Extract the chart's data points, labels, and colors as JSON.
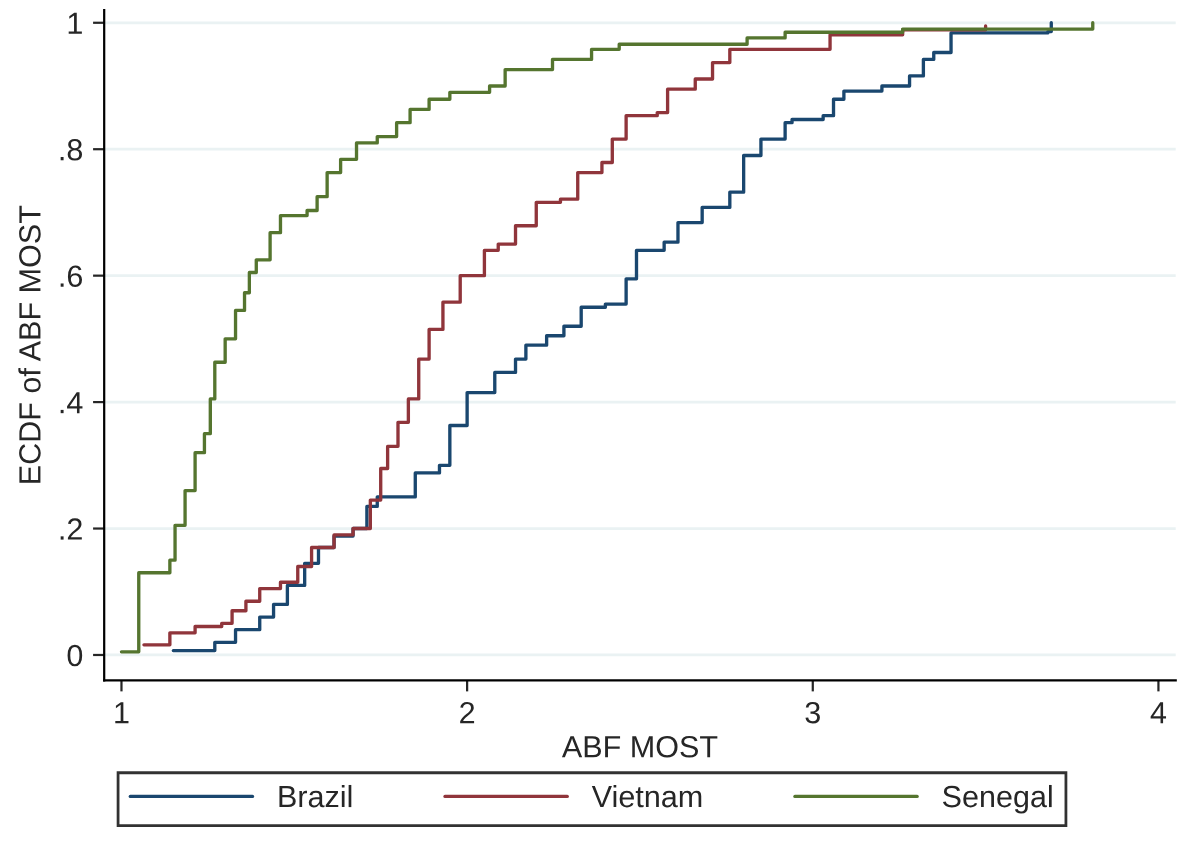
{
  "chart_data": {
    "type": "step",
    "xlabel": "ABF MOST",
    "ylabel": "ECDF of ABF MOST",
    "xlim": [
      0.95,
      4.05
    ],
    "xticks": [
      1,
      2,
      3,
      4
    ],
    "ylim": [
      -0.04,
      1.02
    ],
    "yticks": [
      {
        "value": 0,
        "label": "0"
      },
      {
        "value": 0.2,
        "label": ".2"
      },
      {
        "value": 0.4,
        "label": ".4"
      },
      {
        "value": 0.6,
        "label": ".6"
      },
      {
        "value": 0.8,
        "label": ".8"
      },
      {
        "value": 1,
        "label": "1"
      }
    ],
    "grid": "y",
    "legend": "bottom",
    "series": [
      {
        "name": "Brazil",
        "color": "#1a476f",
        "x": [
          1.15,
          1.27,
          1.33,
          1.4,
          1.44,
          1.48,
          1.53,
          1.57,
          1.615,
          1.67,
          1.71,
          1.74,
          1.8,
          1.85,
          1.92,
          1.95,
          2.0,
          2.08,
          2.14,
          2.17,
          2.23,
          2.28,
          2.33,
          2.4,
          2.46,
          2.49,
          2.57,
          2.61,
          2.68,
          2.76,
          2.8,
          2.85,
          2.92,
          2.94,
          3.03,
          3.06,
          3.09,
          3.2,
          3.28,
          3.32,
          3.35,
          3.4,
          3.68,
          3.69
        ],
        "values": [
          0.007,
          0.02,
          0.04,
          0.06,
          0.08,
          0.11,
          0.145,
          0.17,
          0.188,
          0.2,
          0.235,
          0.25,
          0.25,
          0.288,
          0.3,
          0.363,
          0.415,
          0.447,
          0.468,
          0.49,
          0.505,
          0.52,
          0.55,
          0.555,
          0.595,
          0.64,
          0.653,
          0.684,
          0.708,
          0.732,
          0.79,
          0.816,
          0.842,
          0.847,
          0.853,
          0.879,
          0.892,
          0.9,
          0.916,
          0.942,
          0.953,
          0.984,
          0.986,
          1.0
        ]
      },
      {
        "name": "Vietnam",
        "color": "#90353b",
        "x": [
          1.065,
          1.14,
          1.213,
          1.29,
          1.32,
          1.36,
          1.4,
          1.46,
          1.51,
          1.55,
          1.615,
          1.67,
          1.72,
          1.75,
          1.77,
          1.8,
          1.83,
          1.86,
          1.89,
          1.93,
          1.98,
          2.05,
          2.09,
          2.14,
          2.2,
          2.27,
          2.32,
          2.39,
          2.42,
          2.46,
          2.55,
          2.58,
          2.66,
          2.71,
          2.76,
          3.05,
          3.26,
          3.5
        ],
        "values": [
          0.016,
          0.035,
          0.045,
          0.05,
          0.07,
          0.085,
          0.105,
          0.115,
          0.14,
          0.17,
          0.19,
          0.2,
          0.245,
          0.295,
          0.33,
          0.368,
          0.405,
          0.468,
          0.515,
          0.558,
          0.6,
          0.64,
          0.65,
          0.679,
          0.716,
          0.721,
          0.763,
          0.779,
          0.816,
          0.853,
          0.858,
          0.895,
          0.911,
          0.937,
          0.958,
          0.981,
          0.989,
          0.995
        ]
      },
      {
        "name": "Senegal",
        "color": "#55752f",
        "x": [
          1.0,
          1.05,
          1.08,
          1.14,
          1.155,
          1.184,
          1.213,
          1.24,
          1.257,
          1.27,
          1.3,
          1.33,
          1.356,
          1.37,
          1.39,
          1.43,
          1.46,
          1.537,
          1.566,
          1.595,
          1.634,
          1.68,
          1.74,
          1.796,
          1.835,
          1.89,
          1.95,
          2.065,
          2.11,
          2.247,
          2.36,
          2.44,
          2.81,
          2.92,
          3.26,
          3.81
        ],
        "values": [
          0.005,
          0.13,
          0.13,
          0.15,
          0.205,
          0.26,
          0.32,
          0.35,
          0.405,
          0.463,
          0.5,
          0.545,
          0.573,
          0.605,
          0.625,
          0.668,
          0.695,
          0.703,
          0.725,
          0.763,
          0.784,
          0.81,
          0.82,
          0.842,
          0.863,
          0.879,
          0.89,
          0.9,
          0.926,
          0.942,
          0.958,
          0.966,
          0.976,
          0.985,
          0.99,
          1.0
        ]
      }
    ]
  }
}
